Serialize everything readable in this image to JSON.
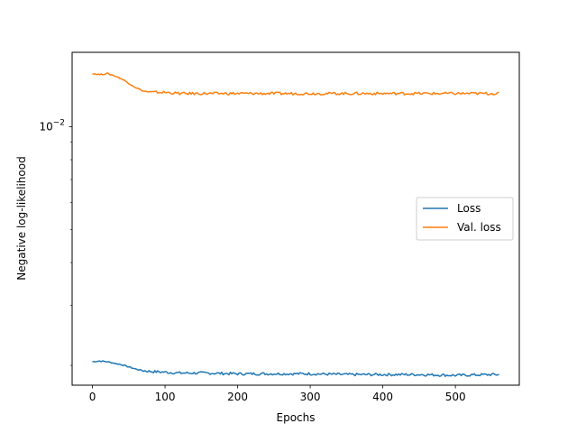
{
  "chart_data": {
    "type": "line",
    "title": "",
    "xlabel": "Epochs",
    "ylabel": "Negative log-likelihood",
    "xlim": [
      -28,
      588
    ],
    "ylim": [
      0.00175,
      0.0165
    ],
    "yscale": "log",
    "xticks": [
      0,
      100,
      200,
      300,
      400,
      500
    ],
    "xtick_labels": [
      "0",
      "100",
      "200",
      "300",
      "400",
      "500"
    ],
    "yticks": [
      0.01
    ],
    "ytick_labels": [
      "10",
      "−2"
    ],
    "grid": false,
    "legend": {
      "position": "center-right"
    },
    "series": [
      {
        "name": "Loss",
        "color": "#1f77b4",
        "x": [
          0,
          10,
          20,
          30,
          40,
          50,
          60,
          70,
          80,
          100,
          120,
          150,
          200,
          250,
          300,
          350,
          400,
          450,
          500,
          550,
          560
        ],
        "values": [
          0.00205,
          0.00206,
          0.00205,
          0.00203,
          0.00201,
          0.00198,
          0.00195,
          0.00193,
          0.00192,
          0.00191,
          0.0019,
          0.0019,
          0.00189,
          0.00189,
          0.00189,
          0.00188,
          0.00188,
          0.00188,
          0.00187,
          0.00188,
          0.00188
        ]
      },
      {
        "name": "Val. loss",
        "color": "#ff7f0e",
        "x": [
          0,
          10,
          20,
          30,
          40,
          50,
          60,
          70,
          80,
          100,
          120,
          150,
          200,
          250,
          300,
          350,
          400,
          450,
          500,
          550,
          560
        ],
        "values": [
          0.0143,
          0.0142,
          0.0143,
          0.0141,
          0.0138,
          0.0134,
          0.013,
          0.0127,
          0.0126,
          0.0126,
          0.0125,
          0.0125,
          0.0125,
          0.0125,
          0.0125,
          0.0125,
          0.0125,
          0.0125,
          0.0125,
          0.0125,
          0.0125
        ]
      }
    ]
  }
}
